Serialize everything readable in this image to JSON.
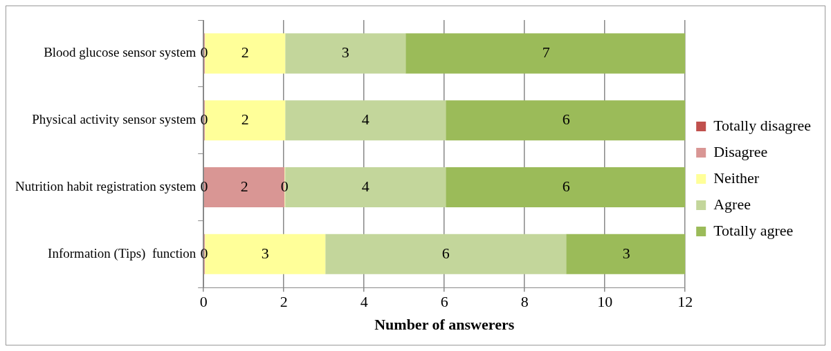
{
  "chart_data": {
    "type": "bar",
    "orientation": "horizontal",
    "stacked": true,
    "xlabel": "Number of answerers",
    "categories": [
      "Blood glucose sensor system",
      "Physical activity sensor system",
      "Nutrition habit registration system",
      "Information (Tips)  function"
    ],
    "series": [
      {
        "name": "Totally disagree",
        "color": "#c0504d",
        "values": [
          0,
          0,
          0,
          0
        ],
        "value_labels": [
          "0",
          "0",
          "0",
          "0"
        ]
      },
      {
        "name": "Disagree",
        "color": "#d99694",
        "values": [
          0,
          0,
          2,
          0
        ],
        "value_labels": [
          null,
          null,
          "2",
          null
        ]
      },
      {
        "name": "Neither",
        "color": "#ffff99",
        "values": [
          2,
          2,
          0,
          3
        ],
        "value_labels": [
          "2",
          "2",
          "0",
          "3"
        ]
      },
      {
        "name": "Agree",
        "color": "#c3d69b",
        "values": [
          3,
          4,
          4,
          6
        ],
        "value_labels": [
          "3",
          "4",
          "4",
          "6"
        ]
      },
      {
        "name": "Totally agree",
        "color": "#9bbb59",
        "values": [
          7,
          6,
          6,
          3
        ],
        "value_labels": [
          "7",
          "6",
          "6",
          "3"
        ]
      }
    ],
    "xlim": [
      0,
      12
    ],
    "xticks": [
      0,
      2,
      4,
      6,
      8,
      10,
      12
    ],
    "grid": "x",
    "legend": "right"
  }
}
